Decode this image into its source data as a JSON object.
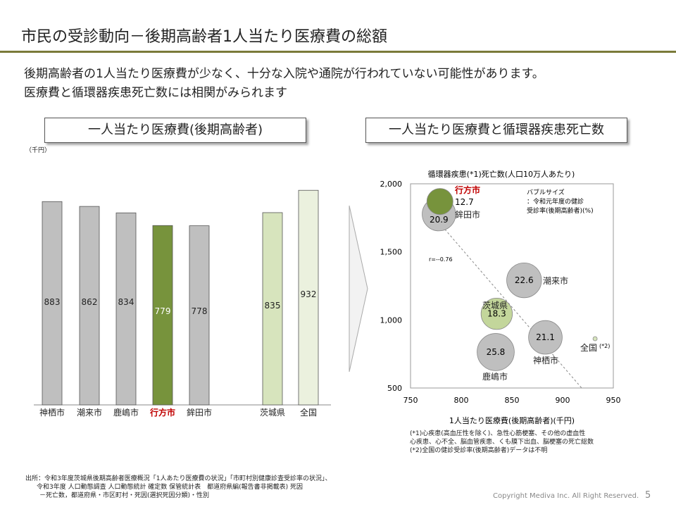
{
  "title": "市民の受診動向－後期高齢者1人当たり医療費の総額",
  "lead": [
    "後期高齢者の1人当たり医療費が少なく、十分な入院や通院が行われていない可能性があります。",
    "医療費と循環器疾患死亡数には相関がみられます"
  ],
  "left_box": "一人当たり医療費(後期高齢者)",
  "right_box": "一人当たり医療費と循環器疾患死亡数",
  "unit": "（千円）",
  "chart_data": [
    {
      "type": "bar",
      "categories": [
        "神栖市",
        "潮来市",
        "鹿嶋市",
        "行方市",
        "鉾田市",
        "茨城県",
        "全国"
      ],
      "values": [
        883,
        862,
        834,
        779,
        778,
        835,
        932
      ],
      "colors": [
        "#bfbfbf",
        "#bfbfbf",
        "#bfbfbf",
        "#77933c",
        "#bfbfbf",
        "#d7e4bd",
        "#ebf1de"
      ],
      "highlight": "行方市",
      "highlight_color": "#c00000"
    },
    {
      "type": "scatter",
      "title": "循環器疾患(*1)死亡数(人口10万人あたり)",
      "xlabel": "1人当たり医療費(後期高齢者)(千円)",
      "xlim": [
        750,
        950
      ],
      "ylim": [
        500,
        2000
      ],
      "xticks": [
        "750",
        "800",
        "850",
        "900",
        "950"
      ],
      "yticks": [
        "500",
        "1,000",
        "1,500",
        "2,000"
      ],
      "points": [
        {
          "label": "行方市",
          "x": 779,
          "y": 1870,
          "size": 12.7,
          "color": "#77933c"
        },
        {
          "label": "鉾田市",
          "x": 778,
          "y": 1777,
          "size": 20.9,
          "color": "#bfbfbf"
        },
        {
          "label": "潮来市",
          "x": 862,
          "y": 1291,
          "size": 22.6,
          "color": "#bfbfbf"
        },
        {
          "label": "茨城県",
          "x": 835,
          "y": 1045,
          "size": 18.3,
          "color": "#c3d69b"
        },
        {
          "label": "鹿嶋市",
          "x": 834,
          "y": 764,
          "size": 25.8,
          "color": "#bfbfbf"
        },
        {
          "label": "神栖市",
          "x": 883,
          "y": 872,
          "size": 21.1,
          "color": "#bfbfbf"
        },
        {
          "label": "全国",
          "x": 932,
          "y": 862,
          "size": null,
          "color": "#d7e4bd",
          "note": "(*2)"
        }
      ],
      "r_label": "r=--0.76",
      "legend": [
        "バブルサイズ",
        "：令和元年度の健診",
        "受診率(後期高齢者)(%)"
      ]
    }
  ],
  "notes": [
    "(*1)心疾患(高血圧性を除く)、急性心筋梗塞、その他の虚血性",
    "心疾患、心不全、脳血管疾患、くも膜下出血、脳梗塞の死亡総数",
    "(*2)全国の健診受診率(後期高齢者)データは不明"
  ],
  "source": [
    "出所：令和3年度茨城県後期高齢者医療概況「1人あたり医療費の状況」「市町村別健康診査受診率の状況」、",
    "令和3年度 人口動態調査 人口動態統計 確定数 保管統計表　都道府県編(報告書非掲載表) 死因",
    "－死亡数，都道府県・市区町村・死因(選択死因分類)・性別"
  ],
  "copyright": "Copyright Mediva Inc. All Right Reserved.",
  "page": "5"
}
